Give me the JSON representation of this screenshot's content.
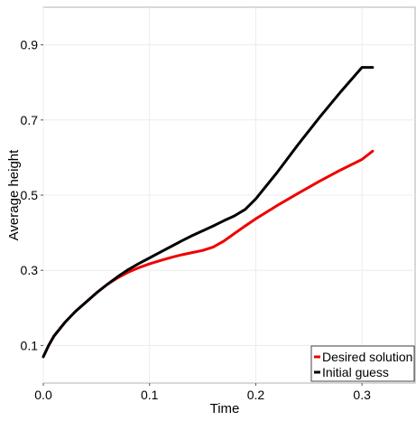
{
  "chart_data": {
    "type": "line",
    "title": "",
    "xlabel": "Time",
    "ylabel": "Average height",
    "xlim": [
      0,
      0.35
    ],
    "ylim": [
      0,
      1.0
    ],
    "x_ticks": [
      0.0,
      0.1,
      0.2,
      0.3
    ],
    "x_tick_labels": [
      "0.0",
      "0.1",
      "0.2",
      "0.3"
    ],
    "y_ticks": [
      0.1,
      0.3,
      0.5,
      0.7,
      0.9
    ],
    "y_tick_labels": [
      "0.1",
      "0.3",
      "0.5",
      "0.7",
      "0.9"
    ],
    "grid": true,
    "legend_position": "bottom-right",
    "series": [
      {
        "name": "Desired solution",
        "color": "#ee0000",
        "x": [
          0,
          0.005,
          0.01,
          0.02,
          0.03,
          0.04,
          0.05,
          0.06,
          0.07,
          0.08,
          0.09,
          0.1,
          0.11,
          0.12,
          0.13,
          0.14,
          0.15,
          0.16,
          0.17,
          0.18,
          0.19,
          0.2,
          0.22,
          0.24,
          0.26,
          0.28,
          0.3,
          0.31
        ],
        "y": [
          0.07,
          0.1,
          0.125,
          0.16,
          0.19,
          0.215,
          0.24,
          0.262,
          0.28,
          0.295,
          0.307,
          0.317,
          0.326,
          0.334,
          0.341,
          0.347,
          0.353,
          0.362,
          0.378,
          0.398,
          0.418,
          0.437,
          0.472,
          0.505,
          0.537,
          0.567,
          0.595,
          0.617
        ]
      },
      {
        "name": "Initial guess",
        "color": "#000000",
        "x": [
          0,
          0.005,
          0.01,
          0.02,
          0.03,
          0.04,
          0.05,
          0.06,
          0.07,
          0.08,
          0.09,
          0.1,
          0.11,
          0.12,
          0.13,
          0.14,
          0.15,
          0.16,
          0.17,
          0.18,
          0.19,
          0.2,
          0.22,
          0.24,
          0.26,
          0.28,
          0.3,
          0.31
        ],
        "y": [
          0.07,
          0.1,
          0.125,
          0.16,
          0.19,
          0.215,
          0.24,
          0.262,
          0.283,
          0.302,
          0.318,
          0.333,
          0.348,
          0.363,
          0.378,
          0.392,
          0.405,
          0.418,
          0.432,
          0.445,
          0.462,
          0.49,
          0.56,
          0.635,
          0.707,
          0.775,
          0.84,
          0.84
        ]
      }
    ]
  }
}
